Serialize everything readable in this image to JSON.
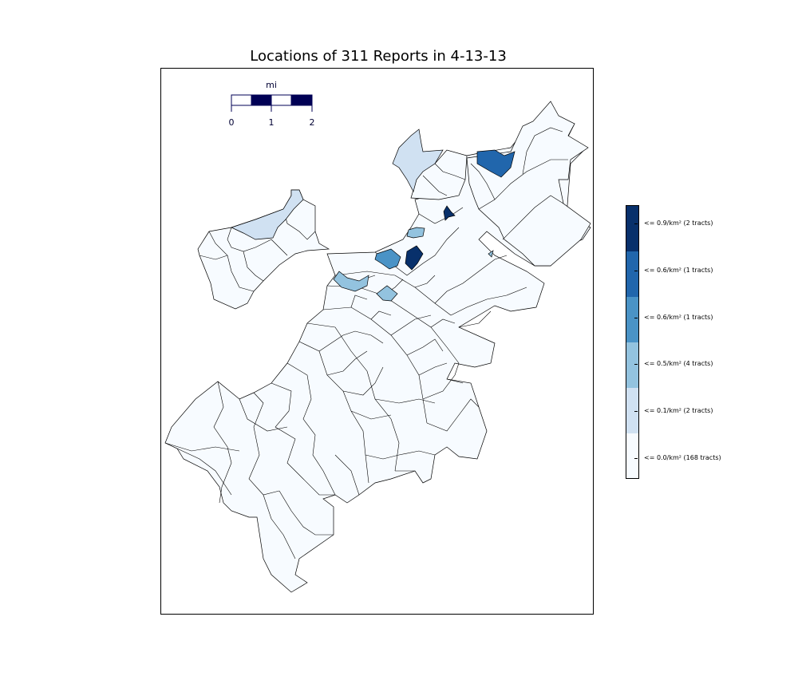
{
  "title": "Locations of 311 Reports in 4-13-13",
  "scale_bar": {
    "unit": "mi",
    "ticks": [
      "0",
      "1",
      "2"
    ],
    "color": "#000055"
  },
  "legend": {
    "placement": "right",
    "bins": [
      {
        "label": "<= 0.9/km² (2 tracts)",
        "color": "#08306b"
      },
      {
        "label": "<= 0.6/km² (1 tracts)",
        "color": "#2166ac"
      },
      {
        "label": "<= 0.6/km² (1 tracts)",
        "color": "#4a93c6"
      },
      {
        "label": "<= 0.5/km² (4 tracts)",
        "color": "#93c3df"
      },
      {
        "label": "<= 0.1/km² (2 tracts)",
        "color": "#d0e1f2"
      },
      {
        "label": "<= 0.0/km² (168 tracts)",
        "color": "#f7fbff"
      }
    ]
  },
  "colors": {
    "tract_stroke": "#000000",
    "base_fill": "#f7fbff"
  }
}
